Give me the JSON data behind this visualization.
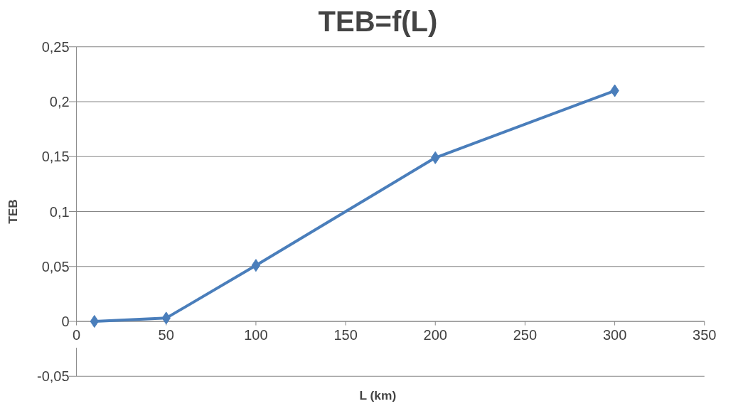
{
  "chart_data": {
    "type": "line",
    "title": "TEB=f(L)",
    "xlabel": "L (km)",
    "ylabel": "TEB",
    "x": [
      10,
      50,
      100,
      200,
      300
    ],
    "series": [
      {
        "color": "#4a7ebb",
        "values": [
          0,
          0.003,
          0.051,
          0.149,
          0.21
        ]
      }
    ],
    "xlim": [
      0,
      350
    ],
    "xticks": [
      0,
      50,
      100,
      150,
      200,
      250,
      300,
      350
    ],
    "ylim": [
      -0.05,
      0.25
    ],
    "yticks": [
      {
        "value": -0.05,
        "label": "-0,05"
      },
      {
        "value": 0,
        "label": "0"
      },
      {
        "value": 0.05,
        "label": "0,05"
      },
      {
        "value": 0.1,
        "label": "0,1"
      },
      {
        "value": 0.15,
        "label": "0,15"
      },
      {
        "value": 0.2,
        "label": "0,2"
      },
      {
        "value": 0.25,
        "label": "0,25"
      }
    ],
    "grid": "y",
    "marker": "diamond",
    "line_style": "solid",
    "legend": false
  }
}
